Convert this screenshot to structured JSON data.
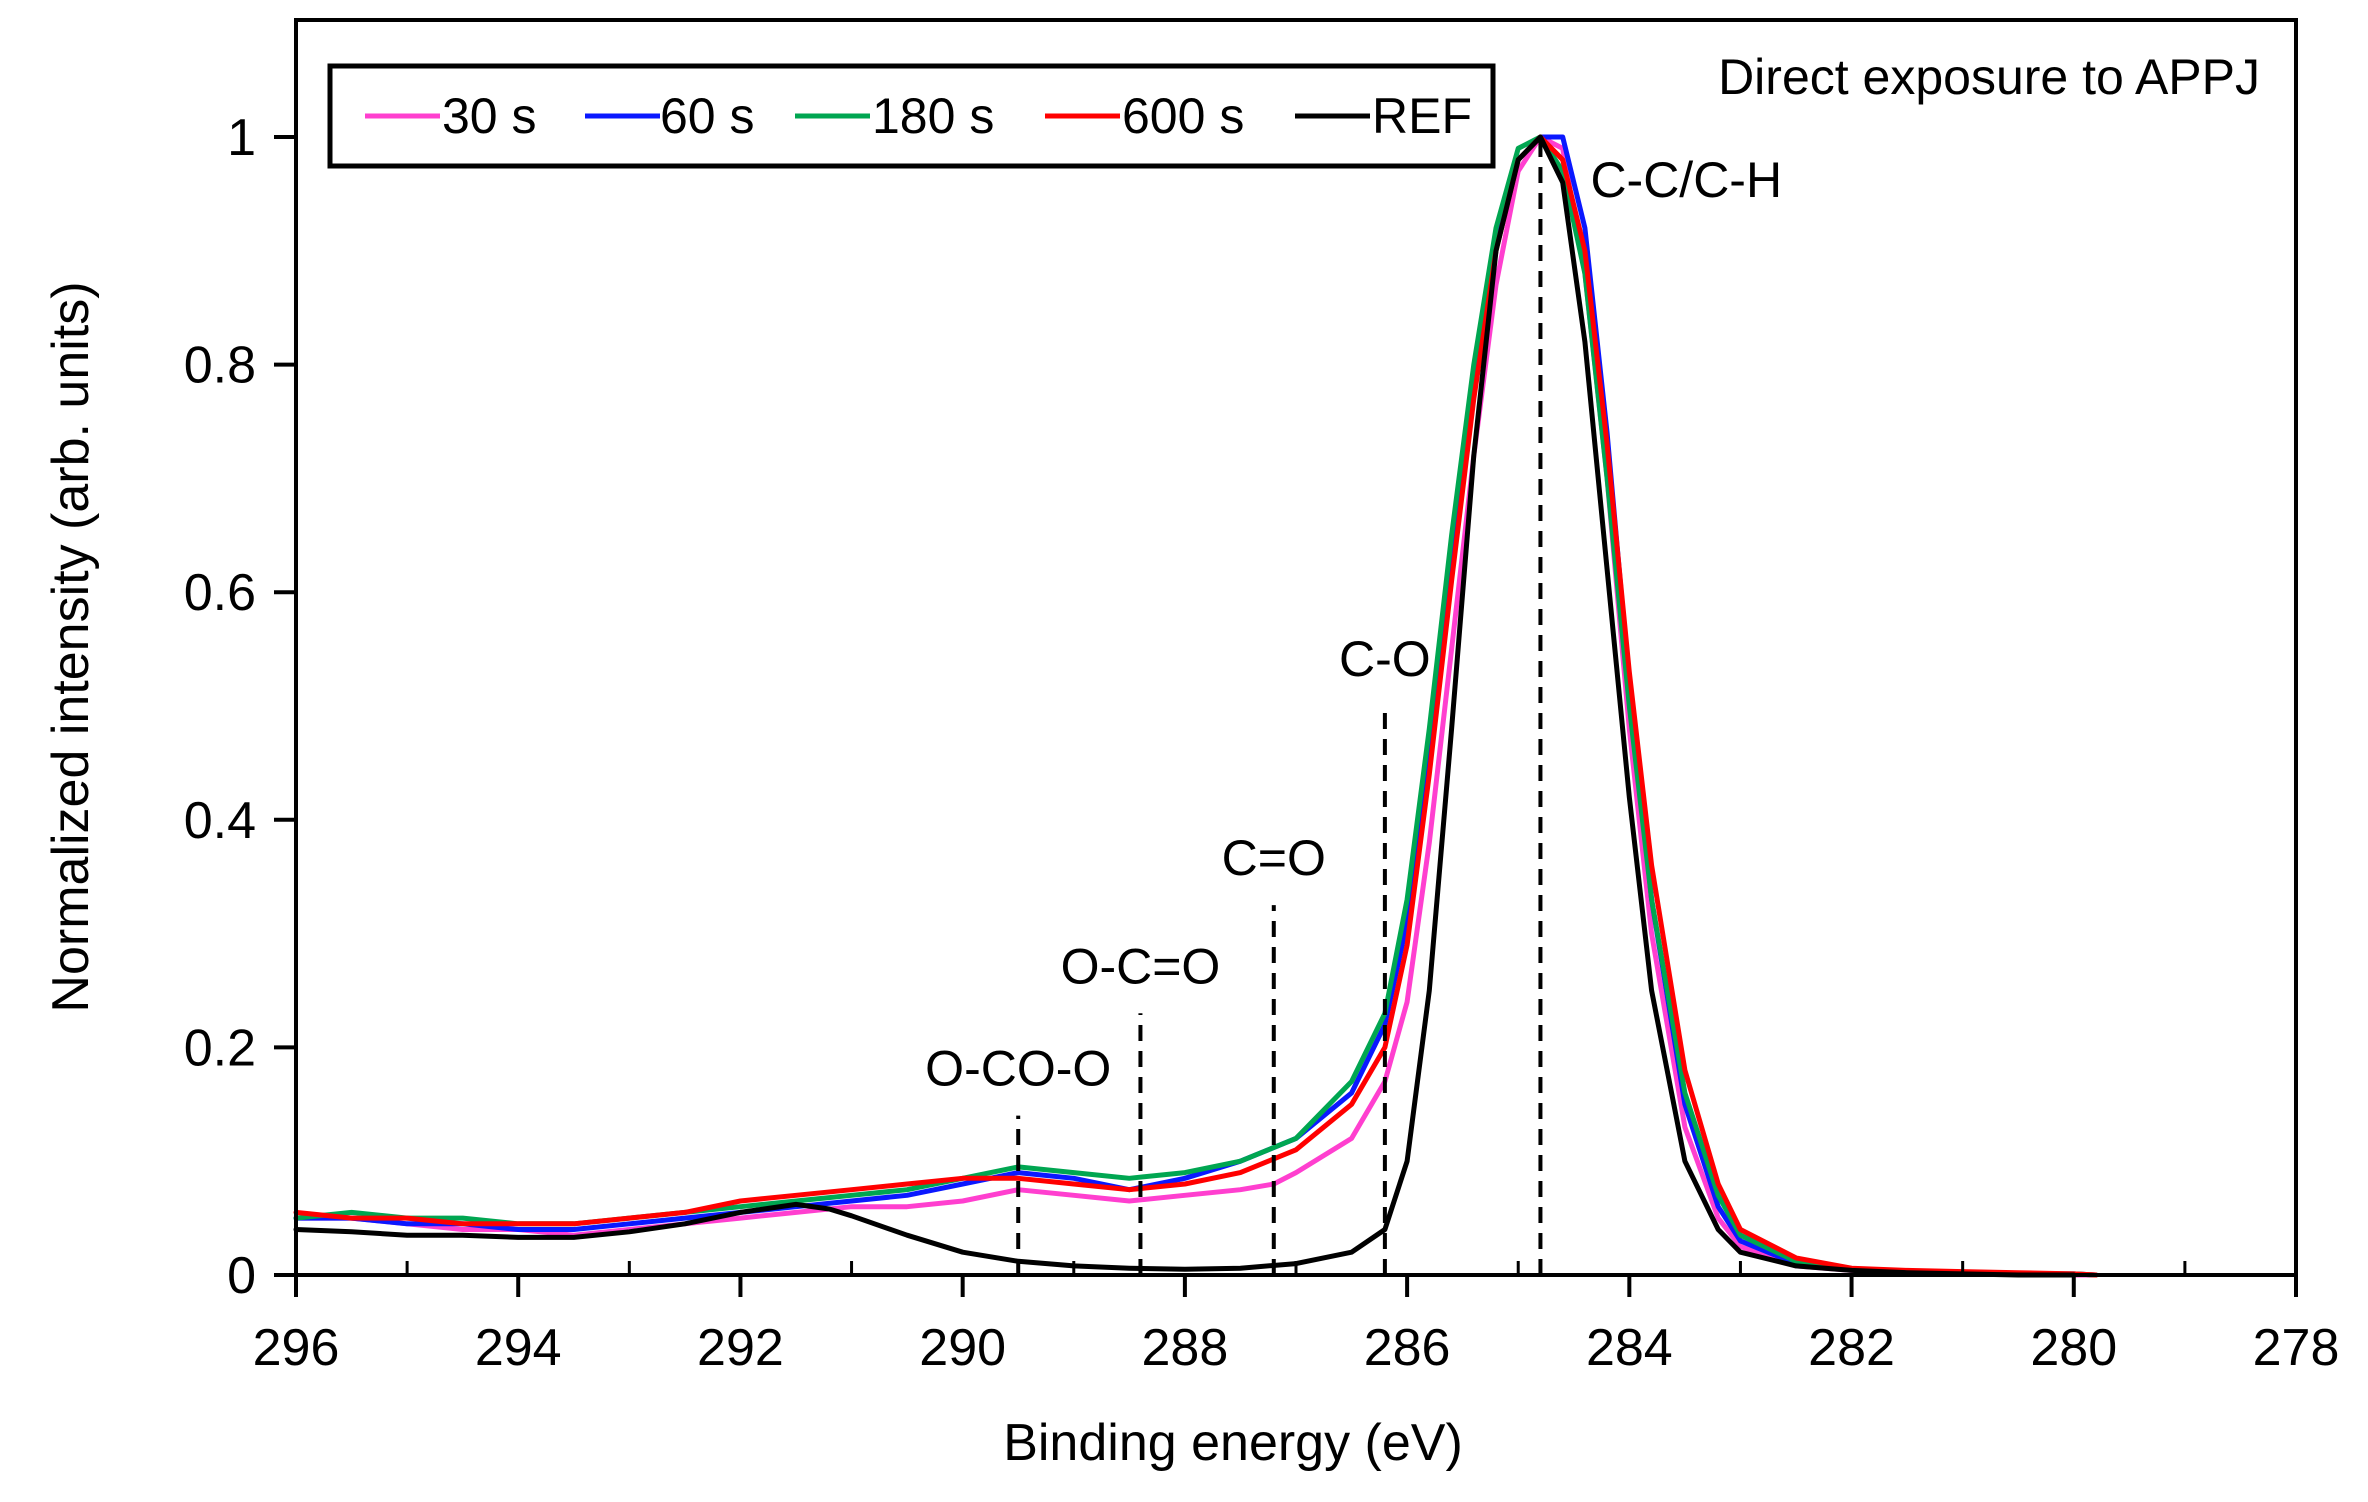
{
  "chart_data": {
    "type": "line",
    "title": "",
    "inset_text": "Direct exposure to APPJ",
    "xlabel": "Binding energy (eV)",
    "ylabel": "Normalized intensity (arb. units)",
    "xlim": [
      296,
      278
    ],
    "ylim": [
      0,
      1.1
    ],
    "x_reversed": true,
    "x_ticks": [
      296,
      294,
      292,
      290,
      288,
      286,
      284,
      282,
      280,
      278
    ],
    "x_tick_labels": [
      "296",
      "294",
      "292",
      "290",
      "288",
      "286",
      "284",
      "282",
      "280",
      "278"
    ],
    "y_ticks": [
      0,
      0.2,
      0.4,
      0.6,
      0.8,
      1
    ],
    "y_tick_labels": [
      "0",
      "0.2",
      "0.4",
      "0.6",
      "0.8",
      "1"
    ],
    "grid": false,
    "legend_position": "top-left",
    "series": [
      {
        "name": "30 s",
        "color": "#ff3fcf",
        "x": [
          296,
          295.5,
          295,
          294.5,
          294,
          293.5,
          293,
          292.5,
          292,
          291.5,
          291,
          290.5,
          290,
          289.5,
          289,
          288.5,
          288,
          287.5,
          287.2,
          287,
          286.5,
          286.2,
          286,
          285.8,
          285.6,
          285.4,
          285.2,
          285,
          284.8,
          284.6,
          284.4,
          284.2,
          284,
          283.8,
          283.5,
          283.2,
          283,
          282.5,
          282,
          281.5,
          281,
          280.5,
          280,
          279.8
        ],
        "y": [
          0.05,
          0.05,
          0.045,
          0.04,
          0.04,
          0.035,
          0.04,
          0.045,
          0.05,
          0.055,
          0.06,
          0.06,
          0.065,
          0.075,
          0.07,
          0.065,
          0.07,
          0.075,
          0.08,
          0.09,
          0.12,
          0.17,
          0.24,
          0.38,
          0.55,
          0.72,
          0.87,
          0.97,
          1.0,
          0.99,
          0.88,
          0.7,
          0.48,
          0.3,
          0.13,
          0.05,
          0.025,
          0.008,
          0.004,
          0.002,
          0.001,
          0.001,
          0.0,
          0.0
        ]
      },
      {
        "name": "60 s",
        "color": "#0a18ff",
        "x": [
          296,
          295.5,
          295,
          294.5,
          294,
          293.5,
          293,
          292.5,
          292,
          291.5,
          291,
          290.5,
          290,
          289.5,
          289,
          288.5,
          288,
          287.5,
          287,
          286.5,
          286.2,
          286,
          285.8,
          285.6,
          285.4,
          285.2,
          285,
          284.8,
          284.6,
          284.4,
          284.2,
          284,
          283.8,
          283.5,
          283.2,
          283,
          282.5,
          282,
          281.5,
          281,
          280.5,
          280,
          279.8
        ],
        "y": [
          0.05,
          0.05,
          0.045,
          0.045,
          0.04,
          0.04,
          0.045,
          0.05,
          0.055,
          0.06,
          0.065,
          0.07,
          0.08,
          0.09,
          0.085,
          0.075,
          0.085,
          0.1,
          0.12,
          0.16,
          0.22,
          0.31,
          0.46,
          0.63,
          0.79,
          0.91,
          0.98,
          1.0,
          1.0,
          0.92,
          0.74,
          0.52,
          0.33,
          0.15,
          0.06,
          0.03,
          0.01,
          0.005,
          0.003,
          0.002,
          0.001,
          0.001,
          0.0
        ]
      },
      {
        "name": "180 s",
        "color": "#00a651",
        "x": [
          296,
          295.5,
          295,
          294.5,
          294,
          293.5,
          293,
          292.5,
          292,
          291.5,
          291,
          290.5,
          290,
          289.5,
          289,
          288.5,
          288,
          287.5,
          287,
          286.5,
          286.2,
          286,
          285.8,
          285.6,
          285.4,
          285.2,
          285,
          284.8,
          284.6,
          284.4,
          284.2,
          284,
          283.8,
          283.5,
          283.2,
          283,
          282.5,
          282,
          281.5,
          281,
          280.5,
          280,
          279.8
        ],
        "y": [
          0.05,
          0.055,
          0.05,
          0.05,
          0.045,
          0.045,
          0.05,
          0.055,
          0.06,
          0.065,
          0.07,
          0.075,
          0.085,
          0.095,
          0.09,
          0.085,
          0.09,
          0.1,
          0.12,
          0.17,
          0.23,
          0.33,
          0.48,
          0.65,
          0.8,
          0.92,
          0.99,
          1.0,
          0.97,
          0.88,
          0.7,
          0.5,
          0.33,
          0.16,
          0.07,
          0.035,
          0.012,
          0.005,
          0.003,
          0.002,
          0.001,
          0.001,
          0.0
        ]
      },
      {
        "name": "600 s",
        "color": "#ff0000",
        "x": [
          296,
          295.5,
          295,
          294.5,
          294,
          293.5,
          293,
          292.5,
          292,
          291.5,
          291,
          290.5,
          290,
          289.5,
          289,
          288.5,
          288,
          287.5,
          287,
          286.5,
          286.2,
          286,
          285.8,
          285.6,
          285.4,
          285.2,
          285,
          284.8,
          284.6,
          284.4,
          284.2,
          284,
          283.8,
          283.5,
          283.2,
          283,
          282.5,
          282,
          281.5,
          281,
          280.5,
          280,
          279.8
        ],
        "y": [
          0.055,
          0.05,
          0.05,
          0.045,
          0.045,
          0.045,
          0.05,
          0.055,
          0.065,
          0.07,
          0.075,
          0.08,
          0.085,
          0.085,
          0.08,
          0.075,
          0.08,
          0.09,
          0.11,
          0.15,
          0.2,
          0.29,
          0.44,
          0.61,
          0.77,
          0.9,
          0.98,
          1.0,
          0.98,
          0.9,
          0.73,
          0.53,
          0.36,
          0.18,
          0.08,
          0.04,
          0.015,
          0.006,
          0.004,
          0.003,
          0.002,
          0.001,
          0.0
        ]
      },
      {
        "name": "REF",
        "color": "#000000",
        "x": [
          296,
          295.5,
          295,
          294.5,
          294,
          293.5,
          293,
          292.5,
          292,
          291.5,
          291.2,
          291,
          290.5,
          290,
          289.5,
          289,
          288.5,
          288,
          287.5,
          287,
          286.5,
          286.2,
          286,
          285.8,
          285.6,
          285.4,
          285.2,
          285,
          284.8,
          284.6,
          284.4,
          284.2,
          284,
          283.8,
          283.5,
          283.2,
          283,
          282.5,
          282,
          281.5,
          281,
          280.5,
          280
        ],
        "y": [
          0.04,
          0.038,
          0.035,
          0.035,
          0.033,
          0.033,
          0.038,
          0.045,
          0.055,
          0.062,
          0.058,
          0.052,
          0.035,
          0.02,
          0.012,
          0.008,
          0.006,
          0.005,
          0.006,
          0.01,
          0.02,
          0.04,
          0.1,
          0.25,
          0.48,
          0.72,
          0.9,
          0.98,
          1.0,
          0.96,
          0.82,
          0.62,
          0.42,
          0.25,
          0.1,
          0.04,
          0.02,
          0.008,
          0.004,
          0.002,
          0.001,
          0.0,
          0.0
        ]
      }
    ],
    "annotations": [
      {
        "label": "C-C/C-H",
        "x": 284.8,
        "y_top": 1.0
      },
      {
        "label": "C-O",
        "x": 286.2,
        "y_top": 0.5
      },
      {
        "label": "C=O",
        "x": 287.2,
        "y_top": 0.325
      },
      {
        "label": "O-C=O",
        "x": 288.4,
        "y_top": 0.23
      },
      {
        "label": "O-CO-O",
        "x": 289.5,
        "y_top": 0.14
      }
    ]
  }
}
